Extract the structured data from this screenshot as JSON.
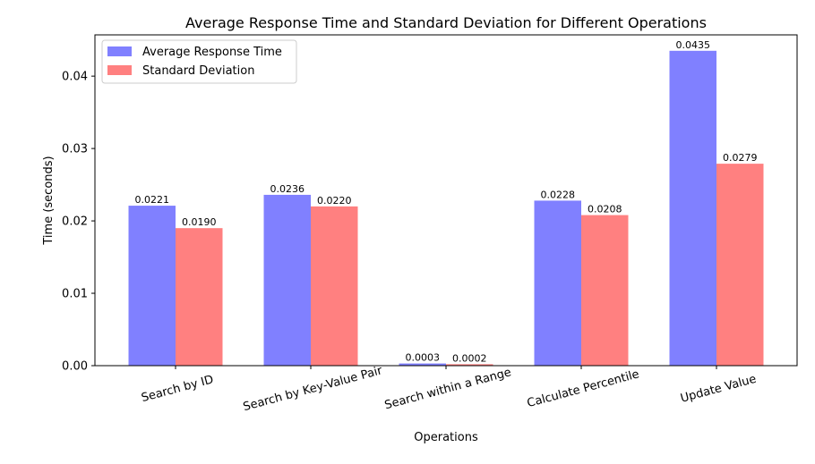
{
  "chart_data": {
    "type": "bar",
    "title": "Average Response Time and Standard Deviation for Different Operations",
    "xlabel": "Operations",
    "ylabel": "Time (seconds)",
    "ylim": [
      0,
      0.0457
    ],
    "yticks": [
      0.0,
      0.01,
      0.02,
      0.03,
      0.04
    ],
    "ytick_labels": [
      "0.00",
      "0.01",
      "0.02",
      "0.03",
      "0.04"
    ],
    "categories": [
      "Search by ID",
      "Search by Key-Value Pair",
      "Search within a Range",
      "Calculate Percentile",
      "Update Value"
    ],
    "series": [
      {
        "name": "Average Response Time",
        "values": [
          0.0221,
          0.0236,
          0.0003,
          0.0228,
          0.0435
        ],
        "labels": [
          "0.0221",
          "0.0236",
          "0.0003",
          "0.0228",
          "0.0435"
        ],
        "color": "#8080ff"
      },
      {
        "name": "Standard Deviation",
        "values": [
          0.019,
          0.022,
          0.0002,
          0.0208,
          0.0279
        ],
        "labels": [
          "0.0190",
          "0.0220",
          "0.0002",
          "0.0208",
          "0.0279"
        ],
        "color": "#ff8080"
      }
    ],
    "legend": "top-left",
    "grid": false,
    "xtick_rotation": 15
  }
}
